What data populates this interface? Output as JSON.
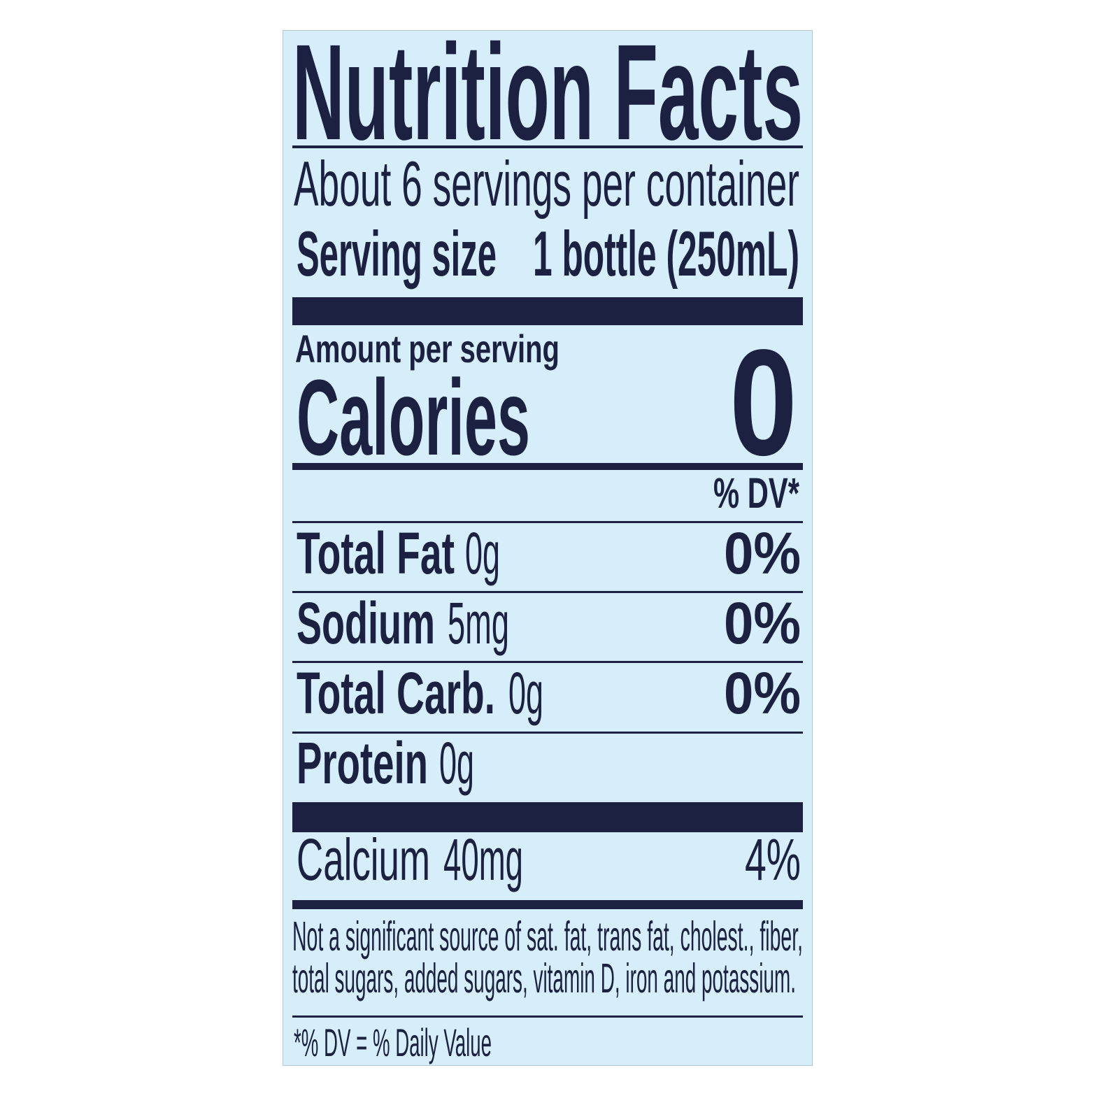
{
  "label": {
    "title": "Nutrition Facts",
    "servings_per_container": "About 6 servings per container",
    "serving_size_label": "Serving size",
    "serving_size_value": "1 bottle (250mL)",
    "amount_per_serving": "Amount per serving",
    "calories_label": "Calories",
    "calories_value": "0",
    "dv_header": "% DV*",
    "nutrients": [
      {
        "name": "Total Fat",
        "amount": "0g",
        "dv": "0%"
      },
      {
        "name": "Sodium",
        "amount": "5mg",
        "dv": "0%"
      },
      {
        "name": "Total Carb.",
        "amount": "0g",
        "dv": "0%"
      },
      {
        "name": "Protein",
        "amount": "0g",
        "dv": ""
      }
    ],
    "minerals": [
      {
        "name": "Calcium",
        "amount": "40mg",
        "dv": "4%"
      }
    ],
    "footnote_line1": "Not a significant source of sat. fat, trans fat, cholest., fiber,",
    "footnote_line2": "total sugars, added sugars, vitamin D, iron and potassium.",
    "dv_definition": "*% DV = % Daily Value"
  },
  "colors": {
    "ink": "#1c2142",
    "background": "#d6eefa"
  }
}
